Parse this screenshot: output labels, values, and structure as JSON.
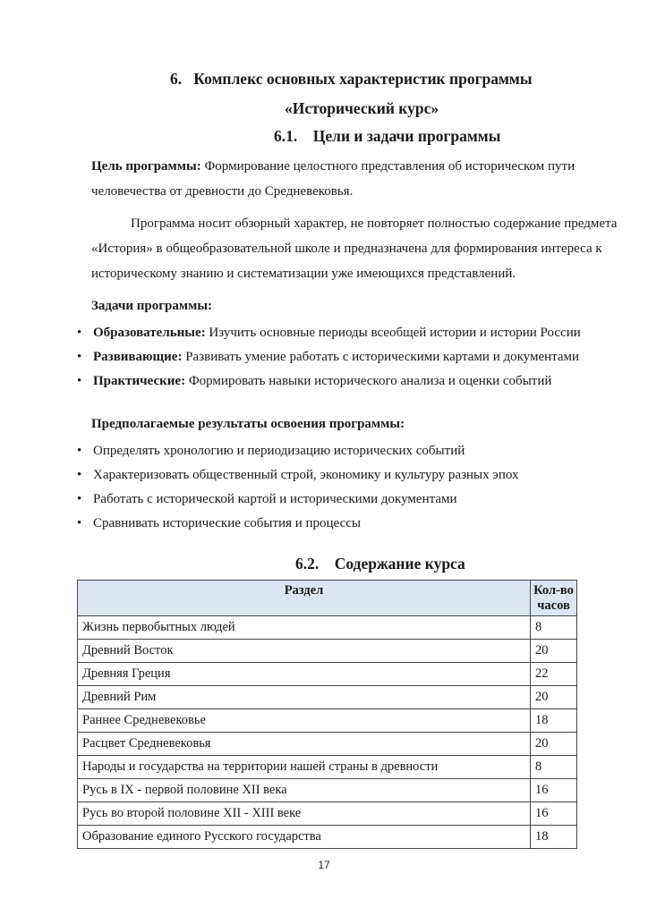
{
  "headings": {
    "h6": "6.   Комплекс основных характеристик программы",
    "h6_sub": "«Исторический курс»",
    "h61": "6.1.    Цели и задачи программы",
    "h62": "6.2.    Содержание курса"
  },
  "goal": {
    "label": "Цель программы:",
    "line1": " Формирование целостного представления об историческом пути",
    "line2": "человечества от древности до Средневековья."
  },
  "intro": {
    "line1": "Программа носит обзорный характер, не повторяет полностью содержание предмета",
    "line2": "«История» в общеобразовательной школе и предназначена для формирования интереса к",
    "line3": "историческому знанию и систематизации уже имеющихся представлений."
  },
  "tasks": {
    "title": "Задачи программы:",
    "items": [
      {
        "label": "Образовательные:",
        "text": " Изучить основные периоды всеобщей истории и истории России"
      },
      {
        "label": "Развивающие:",
        "text": " Развивать умение работать с историческими картами и документами"
      },
      {
        "label": "Практические:",
        "text": " Формировать навыки исторического анализа и оценки событий"
      }
    ]
  },
  "results": {
    "title": "Предполагаемые результаты освоения программы:",
    "items": [
      "Определять хронологию и периодизацию исторических событий",
      "Характеризовать общественный строй, экономику и культуру разных эпох",
      "Работать с исторической картой и историческими документами",
      "Сравнивать исторические события и процессы"
    ]
  },
  "table": {
    "headers": [
      "Раздел",
      "Кол-во часов"
    ],
    "rows": [
      [
        "Жизнь первобытных людей",
        "8"
      ],
      [
        "Древний Восток",
        "20"
      ],
      [
        "Древняя Греция",
        "22"
      ],
      [
        "Древний Рим",
        "20"
      ],
      [
        "Раннее Средневековье",
        "18"
      ],
      [
        "Расцвет Средневековья",
        "20"
      ],
      [
        "Народы и государства на территории нашей страны в древности",
        "8"
      ],
      [
        "Русь в IX - первой половине XII века",
        "16"
      ],
      [
        "Русь во второй половине XII - XIII веке",
        "16"
      ],
      [
        "Образование единого Русского государства",
        "18"
      ]
    ]
  },
  "page_number": "17"
}
